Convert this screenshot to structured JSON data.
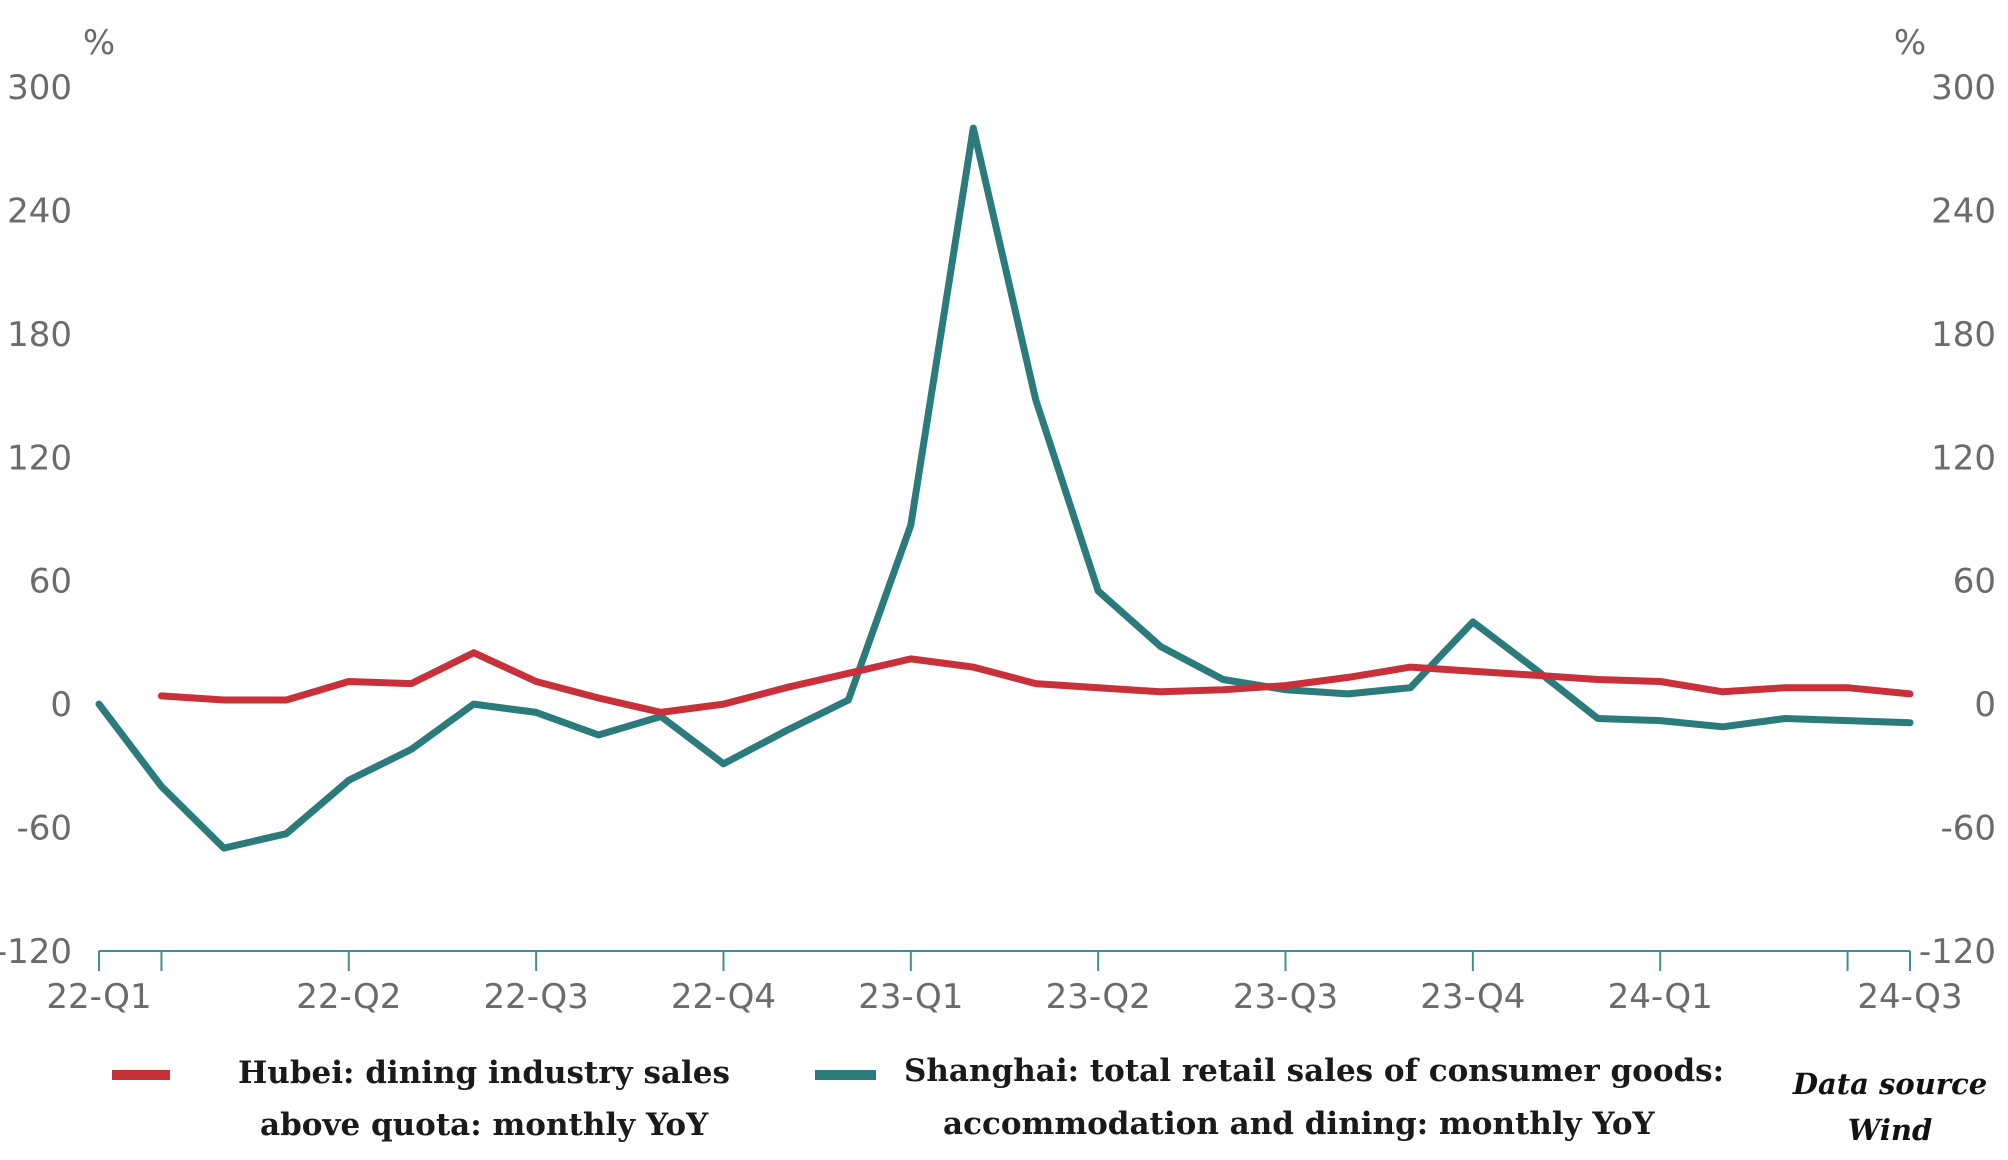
{
  "chart_data": {
    "type": "line",
    "title": "",
    "xlabel": "",
    "y_left_unit": "%",
    "y_right_unit": "%",
    "ylim": [
      -120,
      300
    ],
    "y_ticks": [
      300,
      240,
      180,
      120,
      60,
      0,
      -60,
      -120
    ],
    "y_tick_labels": [
      "300",
      "240",
      "180",
      "120",
      "60",
      "0",
      "-60",
      "-120"
    ],
    "x_tick_labels": [
      "22-Q1",
      "22-Q2",
      "22-Q3",
      "22-Q4",
      "23-Q1",
      "23-Q2",
      "23-Q3",
      "23-Q4",
      "24-Q1",
      "24-Q3"
    ],
    "x_tick_positions": [
      0,
      4,
      7,
      10,
      13,
      16,
      19,
      22,
      25,
      29
    ],
    "x_minor_tick_positions": [
      1,
      28
    ],
    "grid": false,
    "series": [
      {
        "name": "Hubei: dining industry sales above quota: monthly YoY",
        "color": "#c8313a",
        "x": [
          1,
          2,
          3,
          4,
          5,
          6,
          7,
          8,
          9,
          10,
          11,
          12,
          13,
          14,
          15,
          16,
          17,
          18,
          19,
          20,
          21,
          22,
          23,
          24,
          25,
          26,
          27,
          28,
          29
        ],
        "values": [
          4,
          2,
          2,
          11,
          10,
          25,
          11,
          3,
          -4,
          0,
          8,
          15,
          22,
          18,
          10,
          8,
          6,
          7,
          9,
          13,
          18,
          16,
          14,
          12,
          11,
          6,
          8,
          8,
          5
        ]
      },
      {
        "name": "Shanghai: total retail sales of consumer goods: accommodation and dining: monthly YoY",
        "color": "#2b7a7c",
        "x": [
          0,
          1,
          2,
          3,
          4,
          5,
          6,
          7,
          8,
          9,
          10,
          11,
          12,
          13,
          14,
          15,
          16,
          17,
          18,
          19,
          20,
          21,
          22,
          23,
          24,
          25,
          26,
          27,
          28,
          29
        ],
        "values": [
          0,
          -40,
          -70,
          -63,
          -37,
          -22,
          0,
          -4,
          -15,
          -6,
          -29,
          -13,
          2,
          87,
          280,
          148,
          55,
          28,
          12,
          7,
          5,
          8,
          40,
          17,
          -7,
          -8,
          -11,
          -7,
          -8,
          -9
        ]
      }
    ],
    "legend": [
      "Hubei: dining industry sales above quota: monthly YoY",
      "Shanghai: total retail sales of consumer goods: accommodation and dining: monthly YoY"
    ],
    "legend_position": "bottom"
  },
  "legend_lines": {
    "hubei": [
      "Hubei: dining industry sales",
      "above quota: monthly YoY"
    ],
    "shanghai": [
      "Shanghai: total retail sales of consumer goods:",
      "accommodation and dining: monthly YoY"
    ]
  },
  "source": {
    "line1": "Data source",
    "line2": "Wind"
  },
  "colors": {
    "axis": "#3e8f95",
    "tick_text": "#6b6b6b"
  }
}
